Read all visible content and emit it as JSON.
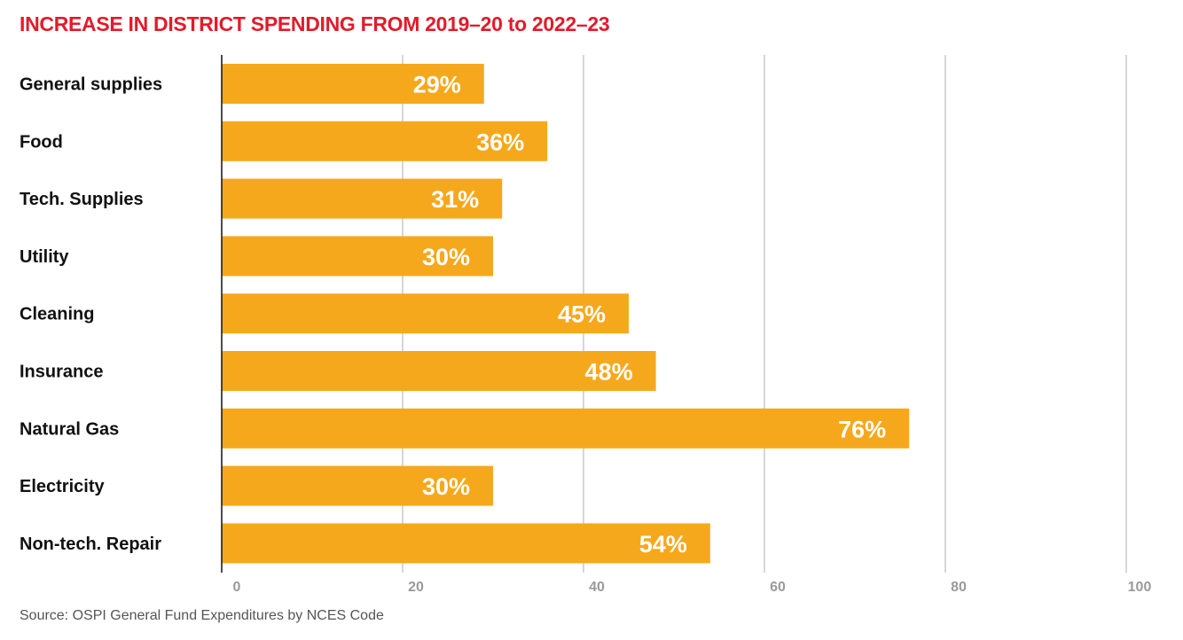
{
  "chart_data": {
    "type": "bar",
    "orientation": "horizontal",
    "title": "INCREASE IN DISTRICT SPENDING FROM 2019–20 to 2022–23",
    "categories": [
      "General supplies",
      "Food",
      "Tech. Supplies",
      "Utility",
      "Cleaning",
      "Insurance",
      "Natural Gas",
      "Electricity",
      "Non-tech. Repair"
    ],
    "values": [
      29,
      36,
      31,
      30,
      45,
      48,
      76,
      30,
      54
    ],
    "value_labels": [
      "29%",
      "36%",
      "31%",
      "30%",
      "45%",
      "48%",
      "76%",
      "30%",
      "54%"
    ],
    "xlim": [
      0,
      100
    ],
    "xticks": [
      0,
      20,
      40,
      60,
      80,
      100
    ],
    "xtick_labels": [
      "0",
      "20",
      "40",
      "60",
      "80",
      "100"
    ],
    "grid": true,
    "legend": "none",
    "source": "Source: OSPI General Fund Expenditures by NCES Code",
    "colors": {
      "bar": "#f6a81c",
      "title": "#e21b2a",
      "grid": "#c8c8c8",
      "axis": "#111111",
      "value_label": "#ffffff",
      "tick_label": "#9a9a9a"
    }
  }
}
